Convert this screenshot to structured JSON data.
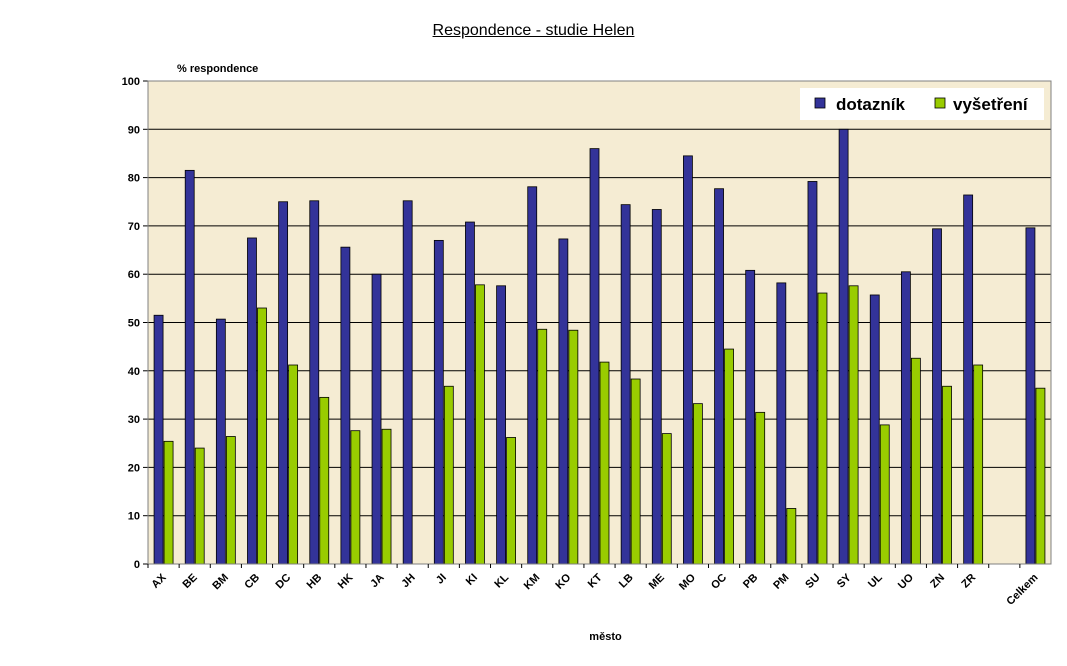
{
  "chart_data": {
    "type": "bar",
    "title": "Respondence - studie Helen",
    "ylabel": "% respondence",
    "xlabel": "město",
    "ylim": [
      0,
      100
    ],
    "yticks": [
      0,
      10,
      20,
      30,
      40,
      50,
      60,
      70,
      80,
      90,
      100
    ],
    "grid": true,
    "legend_position": "top-right",
    "categories": [
      "AX",
      "BE",
      "BM",
      "CB",
      "DC",
      "HB",
      "HK",
      "JA",
      "JH",
      "JI",
      "KI",
      "KL",
      "KM",
      "KO",
      "KT",
      "LB",
      "ME",
      "MO",
      "OC",
      "PB",
      "PM",
      "SU",
      "SY",
      "UL",
      "UO",
      "ZN",
      "ZR",
      "",
      "Celkem"
    ],
    "series": [
      {
        "name": "dotazník",
        "color": "#333399",
        "values": [
          51.5,
          81.5,
          50.7,
          67.5,
          75,
          75.2,
          65.6,
          60,
          75.2,
          67,
          70.8,
          57.6,
          78.1,
          67.3,
          86,
          74.4,
          73.4,
          84.5,
          77.7,
          60.8,
          58.2,
          79.2,
          90,
          55.7,
          60.5,
          69.4,
          76.4,
          null,
          69.6
        ]
      },
      {
        "name": "vyšetření",
        "color": "#99cc00",
        "values": [
          25.4,
          24,
          26.4,
          53,
          41.2,
          34.5,
          27.6,
          27.9,
          null,
          36.8,
          57.8,
          26.2,
          48.6,
          48.4,
          41.8,
          38.3,
          27,
          33.2,
          44.5,
          31.4,
          11.5,
          56.1,
          57.6,
          28.8,
          42.6,
          36.8,
          41.2,
          null,
          36.4
        ]
      }
    ]
  },
  "colors": {
    "plot_bg": "#f5ecd3",
    "grid": "#000000"
  }
}
